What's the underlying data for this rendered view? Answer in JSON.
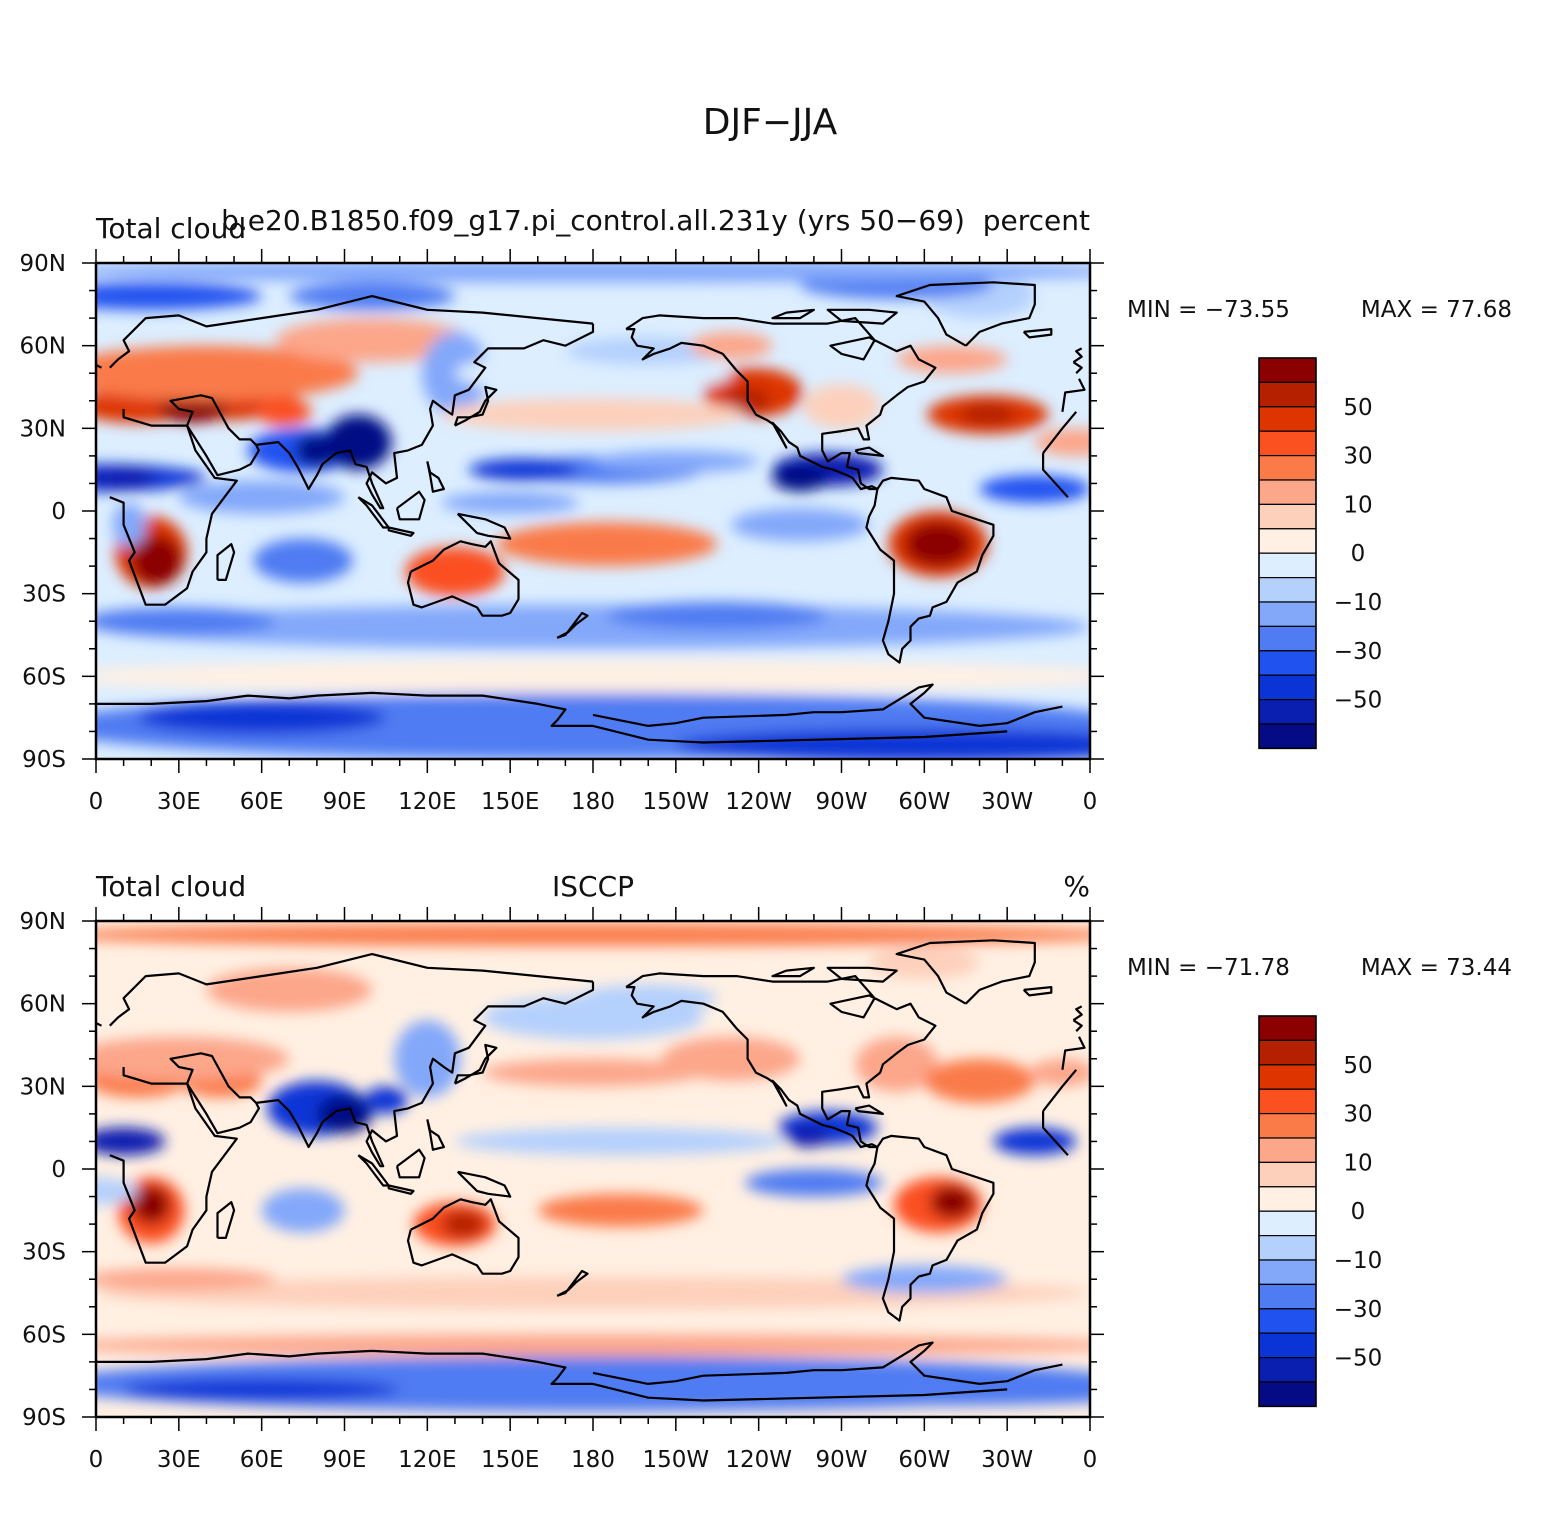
{
  "figure": {
    "title": "DJF−JJA"
  },
  "panels": [
    {
      "left_title": "Total cloud",
      "center_title": "b.e20.B1850.f09_g17.pi_control.all.231y (yrs 50−69)",
      "right_title": "percent",
      "min_label": "MIN = −73.55",
      "max_label": "MAX = 77.68",
      "field": "model"
    },
    {
      "left_title": "Total cloud",
      "center_title": "ISCCP",
      "right_title": "%",
      "min_label": "MIN = −71.78",
      "max_label": "MAX = 73.44",
      "field": "obs"
    }
  ],
  "axes": {
    "lon_ticks": [
      "0",
      "30E",
      "60E",
      "90E",
      "120E",
      "150E",
      "180",
      "150W",
      "120W",
      "90W",
      "60W",
      "30W",
      "0"
    ],
    "lat_ticks": [
      "90N",
      "60N",
      "30N",
      "0",
      "30S",
      "60S",
      "90S"
    ]
  },
  "colorbar": {
    "labels": [
      "50",
      "30",
      "10",
      "0",
      "−10",
      "−30",
      "−50"
    ],
    "colors_top_to_bottom": [
      "#8b0000",
      "#b52000",
      "#dd3400",
      "#fb5020",
      "#fa7a48",
      "#fca68a",
      "#fdd0bb",
      "#fff0e3",
      "#dceeff",
      "#b4d0fd",
      "#83a8fa",
      "#4f7cf2",
      "#2052f0",
      "#0b34d6",
      "#0a1fb0",
      "#050b85"
    ]
  }
}
